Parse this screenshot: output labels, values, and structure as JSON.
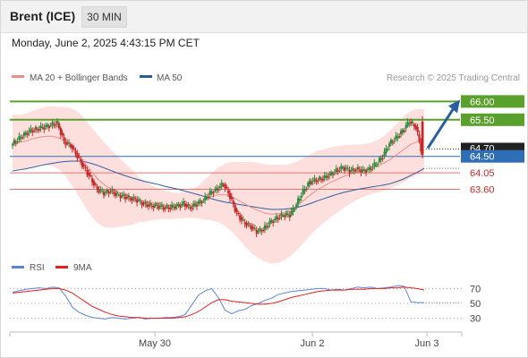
{
  "header": {
    "instrument": "Brent (ICE)",
    "timeframe": "30 MIN",
    "datetime": "Monday, June 2, 2025 4:43:15 PM CET"
  },
  "legend": {
    "ma20_label": "MA 20 + Bollinger Bands",
    "ma20_color": "#f28b82",
    "ma50_label": "MA 50",
    "ma50_color": "#2b5d9e",
    "credit": "Research © 2025 Trading Central"
  },
  "rsi_legend": {
    "rsi_label": "RSI",
    "rsi_color": "#5b86d6",
    "ma9_label": "9MA",
    "ma9_color": "#e02020"
  },
  "colors": {
    "bullish": "#2e8b3e",
    "bearish": "#c62828",
    "resistance": "#5aa02c",
    "support": "#e57373",
    "pivot": "#2f6db5",
    "bollinger_fill": "#fde0de",
    "arrow": "#2a5f9e"
  },
  "chart_data": [
    {
      "type": "candlestick",
      "title": "Brent (ICE) 30 MIN",
      "x_ticks": [
        "May 30",
        "Jun 2",
        "Jun 3"
      ],
      "y_range": [
        61.9,
        66.4
      ],
      "levels": [
        {
          "value": 66.0,
          "label": "66.00",
          "kind": "resistance"
        },
        {
          "value": 65.5,
          "label": "65.50",
          "kind": "resistance"
        },
        {
          "value": 64.7,
          "label": "64.70",
          "kind": "last_price"
        },
        {
          "value": 64.5,
          "label": "64.50",
          "kind": "pivot"
        },
        {
          "value": 64.05,
          "label": "64.05",
          "kind": "support"
        },
        {
          "value": 63.6,
          "label": "63.60",
          "kind": "support"
        }
      ],
      "forecast_arrow": {
        "from": 64.7,
        "to": 66.0
      },
      "price_path": [
        64.8,
        64.95,
        65.1,
        65.2,
        65.25,
        65.3,
        65.35,
        65.4,
        64.9,
        64.8,
        64.5,
        64.2,
        63.9,
        63.6,
        63.5,
        63.55,
        63.45,
        63.4,
        63.35,
        63.3,
        63.2,
        63.15,
        63.15,
        63.1,
        63.1,
        63.15,
        63.2,
        63.1,
        63.2,
        63.3,
        63.5,
        63.6,
        63.75,
        63.4,
        62.95,
        62.7,
        62.6,
        62.45,
        62.5,
        62.7,
        62.8,
        62.9,
        62.9,
        63.2,
        63.55,
        63.8,
        63.85,
        63.9,
        64.0,
        64.1,
        64.2,
        64.1,
        64.15,
        64.1,
        64.15,
        64.3,
        64.5,
        64.85,
        65.0,
        65.2,
        65.45,
        65.3,
        64.5
      ],
      "ma20": [
        64.9,
        64.88,
        64.92,
        64.98,
        65.02,
        65.05,
        65.05,
        65.0,
        64.9,
        64.75,
        64.55,
        64.3,
        64.05,
        63.85,
        63.7,
        63.6,
        63.52,
        63.45,
        63.38,
        63.32,
        63.27,
        63.23,
        63.2,
        63.17,
        63.15,
        63.15,
        63.17,
        63.2,
        63.25,
        63.32,
        63.4,
        63.45,
        63.45,
        63.4,
        63.3,
        63.2,
        63.1,
        63.02,
        62.95,
        62.92,
        62.93,
        62.97,
        63.05,
        63.17,
        63.32,
        63.47,
        63.6,
        63.7,
        63.8,
        63.88,
        63.96,
        64.02,
        64.07,
        64.12,
        64.17,
        64.23,
        64.32,
        64.43,
        64.56,
        64.7,
        64.83,
        64.9,
        64.94
      ],
      "ma50": [
        64.1,
        64.13,
        64.16,
        64.2,
        64.24,
        64.28,
        64.31,
        64.34,
        64.36,
        64.37,
        64.37,
        64.35,
        64.3,
        64.24,
        64.17,
        64.1,
        64.03,
        63.97,
        63.91,
        63.86,
        63.81,
        63.77,
        63.73,
        63.68,
        63.64,
        63.6,
        63.55,
        63.5,
        63.45,
        63.4,
        63.34,
        63.29,
        63.25,
        63.22,
        63.19,
        63.16,
        63.13,
        63.1,
        63.07,
        63.05,
        63.05,
        63.06,
        63.08,
        63.11,
        63.16,
        63.22,
        63.29,
        63.35,
        63.41,
        63.47,
        63.52,
        63.56,
        63.6,
        63.63,
        63.66,
        63.69,
        63.72,
        63.76,
        63.82,
        63.89,
        63.98,
        64.07,
        64.17
      ],
      "bollinger_width": [
        0.75,
        0.75,
        0.75,
        0.76,
        0.78,
        0.8,
        0.82,
        0.85,
        0.95,
        1.05,
        1.15,
        1.2,
        1.22,
        1.2,
        1.15,
        1.05,
        0.95,
        0.85,
        0.75,
        0.62,
        0.55,
        0.48,
        0.42,
        0.38,
        0.36,
        0.35,
        0.36,
        0.38,
        0.45,
        0.55,
        0.65,
        0.75,
        0.85,
        0.95,
        1.05,
        1.15,
        1.25,
        1.3,
        1.33,
        1.35,
        1.34,
        1.3,
        1.25,
        1.2,
        1.15,
        1.1,
        1.05,
        1.0,
        0.95,
        0.9,
        0.85,
        0.8,
        0.75,
        0.72,
        0.7,
        0.72,
        0.75,
        0.8,
        0.85,
        0.9,
        0.92,
        0.9,
        0.85
      ]
    },
    {
      "type": "line",
      "title": "RSI",
      "y_ticks": [
        30,
        50,
        70
      ],
      "y_range": [
        15,
        85
      ],
      "series": [
        {
          "name": "RSI",
          "values": [
            65,
            67,
            69,
            70,
            71,
            70,
            72,
            71,
            60,
            45,
            38,
            34,
            31,
            30,
            29,
            31,
            30,
            29,
            30,
            31,
            29,
            30,
            30,
            31,
            31,
            32,
            35,
            48,
            61,
            67,
            70,
            58,
            41,
            36,
            40,
            42,
            47,
            50,
            54,
            57,
            62,
            64,
            66,
            67,
            68,
            69,
            70,
            70,
            68,
            69,
            68,
            70,
            72,
            71,
            72,
            70,
            71,
            72,
            74,
            73,
            52,
            51,
            51
          ]
        },
        {
          "name": "9MA",
          "values": [
            64,
            65,
            66,
            67,
            68,
            69,
            70,
            70,
            68,
            64,
            58,
            52,
            46,
            42,
            38,
            35,
            33,
            32,
            31,
            31,
            30,
            30,
            30,
            30,
            30,
            31,
            32,
            35,
            39,
            45,
            51,
            55,
            55,
            53,
            52,
            51,
            50,
            49,
            49,
            50,
            52,
            55,
            58,
            60,
            62,
            64,
            66,
            67,
            68,
            68,
            68,
            69,
            69,
            69,
            70,
            70,
            70,
            71,
            71,
            72,
            71,
            70,
            68
          ]
        }
      ]
    }
  ]
}
